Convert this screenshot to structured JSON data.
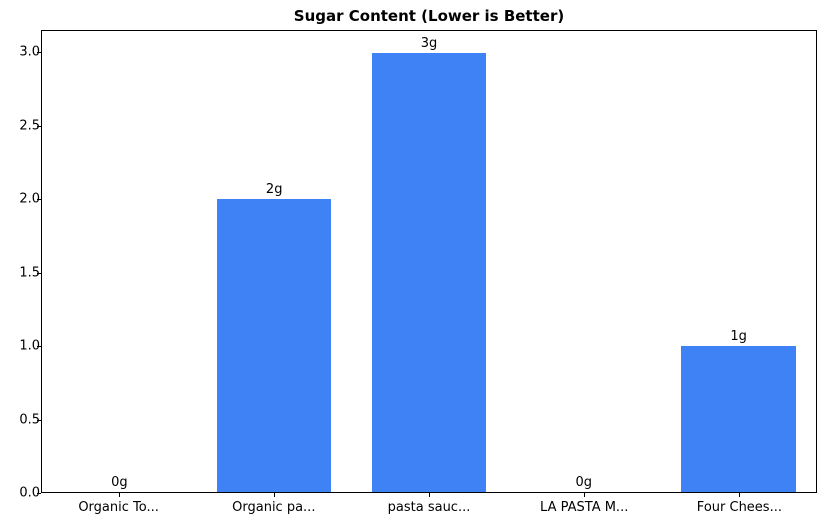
{
  "chart_data": {
    "type": "bar",
    "title": "Sugar Content (Lower is Better)",
    "categories": [
      "Organic To...",
      "Organic pa...",
      "pasta sauc...",
      "LA PASTA M...",
      "Four Chees..."
    ],
    "values": [
      0,
      2,
      3,
      0,
      1
    ],
    "value_labels": [
      "0g",
      "2g",
      "3g",
      "0g",
      "1g"
    ],
    "xlabel": "",
    "ylabel": "",
    "ylim": [
      0,
      3.15
    ],
    "yticks": [
      0.0,
      0.5,
      1.0,
      1.5,
      2.0,
      2.5,
      3.0
    ],
    "ytick_labels": [
      "0.0",
      "0.5",
      "1.0",
      "1.5",
      "2.0",
      "2.5",
      "3.0"
    ],
    "grid": false,
    "legend_position": "none",
    "bar_color": "#3e82f5",
    "spine_color": "#000000",
    "background_color": "#ffffff"
  }
}
